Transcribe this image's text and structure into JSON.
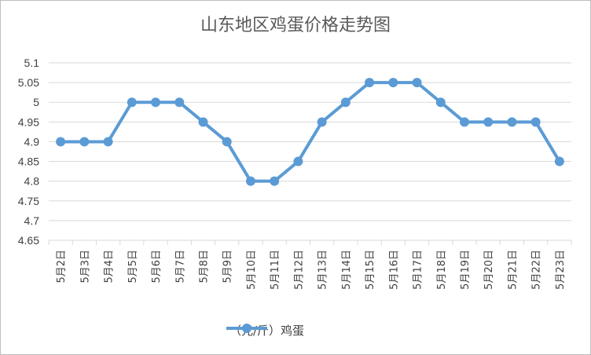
{
  "chart_data": {
    "type": "line",
    "title": "山东地区鸡蛋价格走势图",
    "categories": [
      "5月2日",
      "5月3日",
      "5月4日",
      "5月5日",
      "5月6日",
      "5月7日",
      "5月8日",
      "5月9日",
      "5月10日",
      "5月11日",
      "5月12日",
      "5月13日",
      "5月14日",
      "5月15日",
      "5月16日",
      "5月17日",
      "5月18日",
      "5月19日",
      "5月20日",
      "5月21日",
      "5月22日",
      "5月23日"
    ],
    "series": [
      {
        "name": "（元/斤）鸡蛋",
        "values": [
          4.9,
          4.9,
          4.9,
          5.0,
          5.0,
          5.0,
          4.95,
          4.9,
          4.8,
          4.8,
          4.85,
          4.95,
          5.0,
          5.05,
          5.05,
          5.05,
          5.0,
          4.95,
          4.95,
          4.95,
          4.95,
          4.85
        ]
      }
    ],
    "yticks": [
      "4.65",
      "4.7",
      "4.75",
      "4.8",
      "4.85",
      "4.9",
      "4.95",
      "5",
      "5.05",
      "5.1"
    ],
    "ylim": [
      4.65,
      5.1
    ],
    "grid": true,
    "legend_position": "bottom",
    "line_color": "#5b9bd5"
  }
}
